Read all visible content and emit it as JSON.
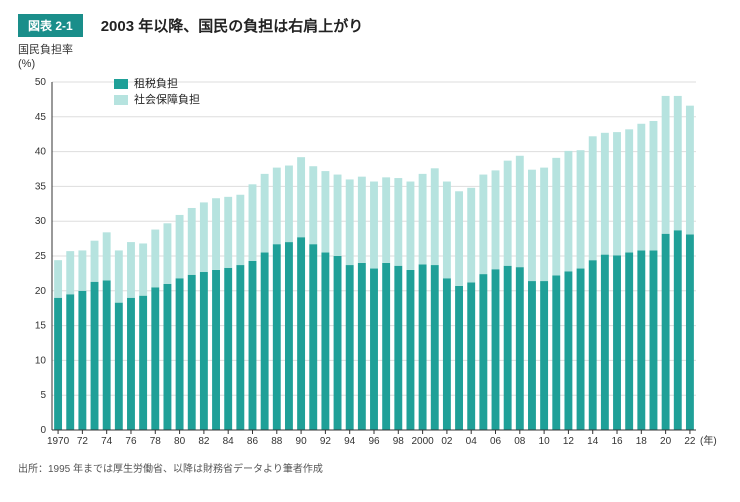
{
  "header": {
    "badge": "図表 2-1",
    "title": "2003 年以降、国民の負担は右肩上がり"
  },
  "ylabel_line1": "国民負担率",
  "ylabel_line2": "(%)",
  "xlabel_suffix": "(年)",
  "legend": {
    "series1": "租税負担",
    "series2": "社会保障負担"
  },
  "source": "出所：1995 年までは厚生労働省、以降は財務省データより筆者作成",
  "chart": {
    "type": "stacked-bar",
    "background_color": "#ffffff",
    "axis_color": "#333333",
    "grid_color": "#dddddd",
    "colors": {
      "tax": "#1fa098",
      "social": "#b6e3df"
    },
    "ylim": [
      0,
      50
    ],
    "ytick_step": 5,
    "bar_width_ratio": 0.65,
    "title_fontsize": 15,
    "axis_fontsize": 10,
    "legend_fontsize": 11,
    "years": [
      1970,
      1971,
      1972,
      1973,
      1974,
      1975,
      1976,
      1977,
      1978,
      1979,
      1980,
      1981,
      1982,
      1983,
      1984,
      1985,
      1986,
      1987,
      1988,
      1989,
      1990,
      1991,
      1992,
      1993,
      1994,
      1995,
      1996,
      1997,
      1998,
      1999,
      2000,
      2001,
      2002,
      2003,
      2004,
      2005,
      2006,
      2007,
      2008,
      2009,
      2010,
      2011,
      2012,
      2013,
      2014,
      2015,
      2016,
      2017,
      2018,
      2019,
      2020,
      2021,
      2022
    ],
    "tax": [
      19.0,
      19.5,
      20.0,
      21.3,
      21.5,
      18.3,
      19.0,
      19.3,
      20.5,
      21.0,
      21.8,
      22.3,
      22.7,
      23.0,
      23.3,
      23.7,
      24.3,
      25.5,
      26.7,
      27.0,
      27.7,
      26.7,
      25.5,
      25.0,
      23.7,
      24.0,
      23.2,
      24.0,
      23.6,
      23.0,
      23.8,
      23.7,
      21.8,
      20.7,
      21.2,
      22.4,
      23.1,
      23.6,
      23.4,
      21.4,
      21.4,
      22.2,
      22.8,
      23.2,
      24.4,
      25.2,
      25.1,
      25.5,
      25.8,
      25.8,
      28.2,
      28.7,
      28.1
    ],
    "social": [
      5.4,
      6.2,
      5.8,
      5.9,
      6.9,
      7.5,
      8.0,
      7.5,
      8.3,
      8.7,
      9.1,
      9.6,
      10.0,
      10.3,
      10.2,
      10.1,
      11.0,
      11.3,
      11.0,
      11.0,
      11.5,
      11.2,
      11.7,
      11.7,
      12.3,
      12.4,
      12.5,
      12.3,
      12.6,
      12.7,
      13.0,
      13.9,
      13.9,
      13.6,
      13.6,
      14.3,
      14.2,
      15.1,
      16.0,
      16.0,
      16.3,
      16.9,
      17.3,
      17.0,
      17.8,
      17.5,
      17.7,
      17.7,
      18.2,
      18.6,
      19.8,
      19.3,
      18.5
    ],
    "xtick_years": [
      1970,
      1972,
      1974,
      1976,
      1978,
      1980,
      1982,
      1984,
      1986,
      1988,
      1990,
      1992,
      1994,
      1996,
      1998,
      2000,
      2002,
      2004,
      2006,
      2008,
      2010,
      2012,
      2014,
      2016,
      2018,
      2020,
      2022
    ],
    "xtick_labels": [
      "1970",
      "72",
      "74",
      "76",
      "78",
      "80",
      "82",
      "84",
      "86",
      "88",
      "90",
      "92",
      "94",
      "96",
      "98",
      "2000",
      "02",
      "04",
      "06",
      "08",
      "10",
      "12",
      "14",
      "16",
      "18",
      "20",
      "22"
    ]
  }
}
